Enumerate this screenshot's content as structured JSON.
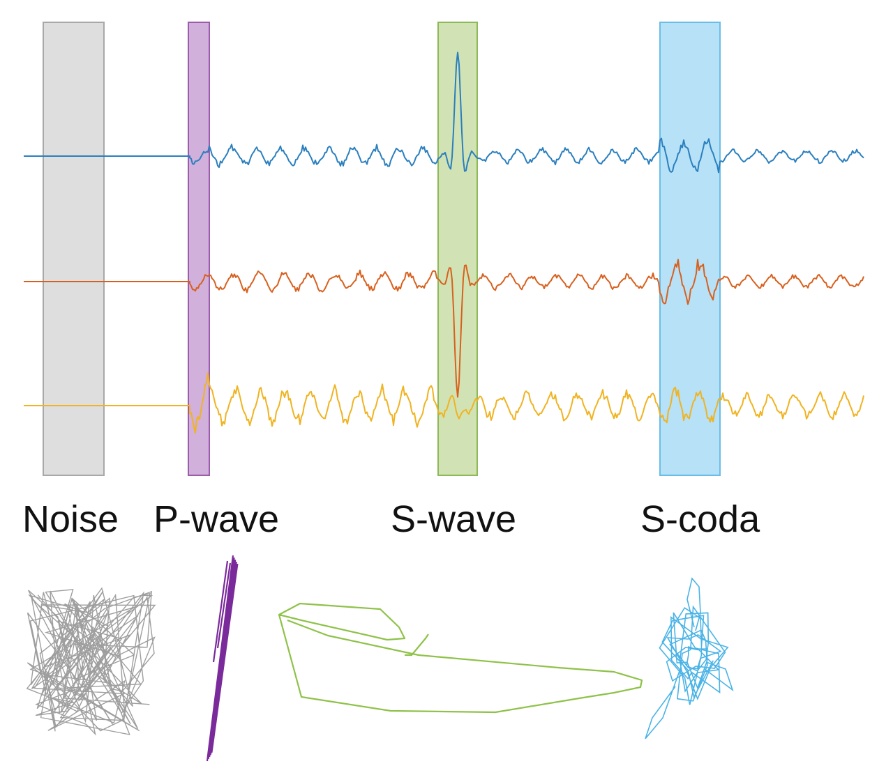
{
  "labels": {
    "noise": "Noise",
    "p_wave": "P-wave",
    "s_wave": "S-wave",
    "s_coda": "S-coda"
  },
  "colors": {
    "background": "#ffffff",
    "noise_window": "#d9d9d9",
    "noise_window_edge": "#9a9a9a",
    "p_window": "#c9a3d6",
    "p_window_edge": "#8c3f9e",
    "s_window": "#c9dfa8",
    "s_window_edge": "#7aad3a",
    "coda_window": "#aadcf6",
    "coda_window_edge": "#4fb2e6",
    "trace_1": "#2a7fbe",
    "trace_2": "#d8601e",
    "trace_3": "#f0b321",
    "particle_noise": "#9e9e9e",
    "particle_p": "#7a2a9a",
    "particle_s": "#8ec248",
    "particle_coda": "#4ab3e6"
  }
}
